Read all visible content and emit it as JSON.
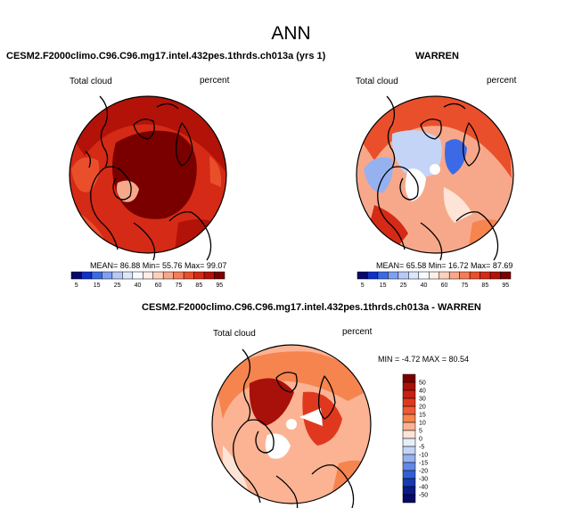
{
  "figure": {
    "title": "ANN",
    "panels": [
      {
        "title": "CESM2.F2000climo.C96.C96.mg17.intel.432pes.1thrds.ch013a (yrs 1)",
        "left_label": "Total cloud",
        "right_label": "percent",
        "stats": "MEAN= 86.88  Min= 55.76  Max= 99.07"
      },
      {
        "title": "WARREN",
        "left_label": "Total cloud",
        "right_label": "percent",
        "stats": "MEAN= 65.58  Min= 16.72  Max= 87.69"
      },
      {
        "title": "CESM2.F2000climo.C96.C96.mg17.intel.432pes.1thrds.ch013a - WARREN",
        "left_label": "Total cloud",
        "right_label": "percent",
        "stats": "MIN = -4.72 MAX = 80.54"
      }
    ]
  },
  "chart_data": [
    {
      "type": "heatmap",
      "projection": "north-polar-stereographic",
      "title": "CESM2.F2000climo.C96.C96.mg17.intel.432pes.1thrds.ch013a (yrs 1)",
      "variable": "Total cloud",
      "units": "percent",
      "mean": 86.88,
      "min": 55.76,
      "max": 99.07,
      "colorbar": {
        "orientation": "horizontal",
        "levels": [
          5,
          10,
          15,
          20,
          25,
          30,
          40,
          50,
          60,
          70,
          75,
          80,
          85,
          90,
          95
        ],
        "tick_labels": [
          "5",
          "15",
          "25",
          "40",
          "60",
          "75",
          "85",
          "95"
        ],
        "colors": [
          "#08086c",
          "#1130c8",
          "#3c6ae6",
          "#7f9ff1",
          "#b7c9f7",
          "#dde6fb",
          "#f6fafe",
          "#fdeee6",
          "#fcd0bd",
          "#f8a88a",
          "#f47c58",
          "#ea4f2b",
          "#d52a15",
          "#b31209",
          "#7a0000"
        ]
      }
    },
    {
      "type": "heatmap",
      "projection": "north-polar-stereographic",
      "title": "WARREN",
      "variable": "Total cloud",
      "units": "percent",
      "mean": 65.58,
      "min": 16.72,
      "max": 87.69,
      "colorbar": {
        "orientation": "horizontal",
        "levels": [
          5,
          10,
          15,
          20,
          25,
          30,
          40,
          50,
          60,
          70,
          75,
          80,
          85,
          90,
          95
        ],
        "tick_labels": [
          "5",
          "15",
          "25",
          "40",
          "60",
          "75",
          "85",
          "95"
        ],
        "colors": [
          "#08086c",
          "#1130c8",
          "#3c6ae6",
          "#7f9ff1",
          "#b7c9f7",
          "#dde6fb",
          "#f6fafe",
          "#fdeee6",
          "#fcd0bd",
          "#f8a88a",
          "#f47c58",
          "#ea4f2b",
          "#d52a15",
          "#b31209",
          "#7a0000"
        ]
      }
    },
    {
      "type": "heatmap",
      "projection": "north-polar-stereographic",
      "title": "CESM2.F2000climo.C96.C96.mg17.intel.432pes.1thrds.ch013a - WARREN",
      "variable": "Total cloud",
      "units": "percent",
      "min": -4.72,
      "max": 80.54,
      "colorbar": {
        "orientation": "vertical",
        "tick_labels": [
          "50",
          "40",
          "30",
          "20",
          "15",
          "10",
          "5",
          "0",
          "-5",
          "-10",
          "-15",
          "-20",
          "-30",
          "-40",
          "-50"
        ],
        "colors": [
          "#7a0000",
          "#a8100a",
          "#c82014",
          "#e0381f",
          "#ef5a36",
          "#f6844f",
          "#fbb394",
          "#fde4d6",
          "#e7eefb",
          "#c4d4f6",
          "#95b1ef",
          "#6388e4",
          "#3260d4",
          "#1839b0",
          "#0a1a86",
          "#060a63"
        ]
      }
    }
  ]
}
